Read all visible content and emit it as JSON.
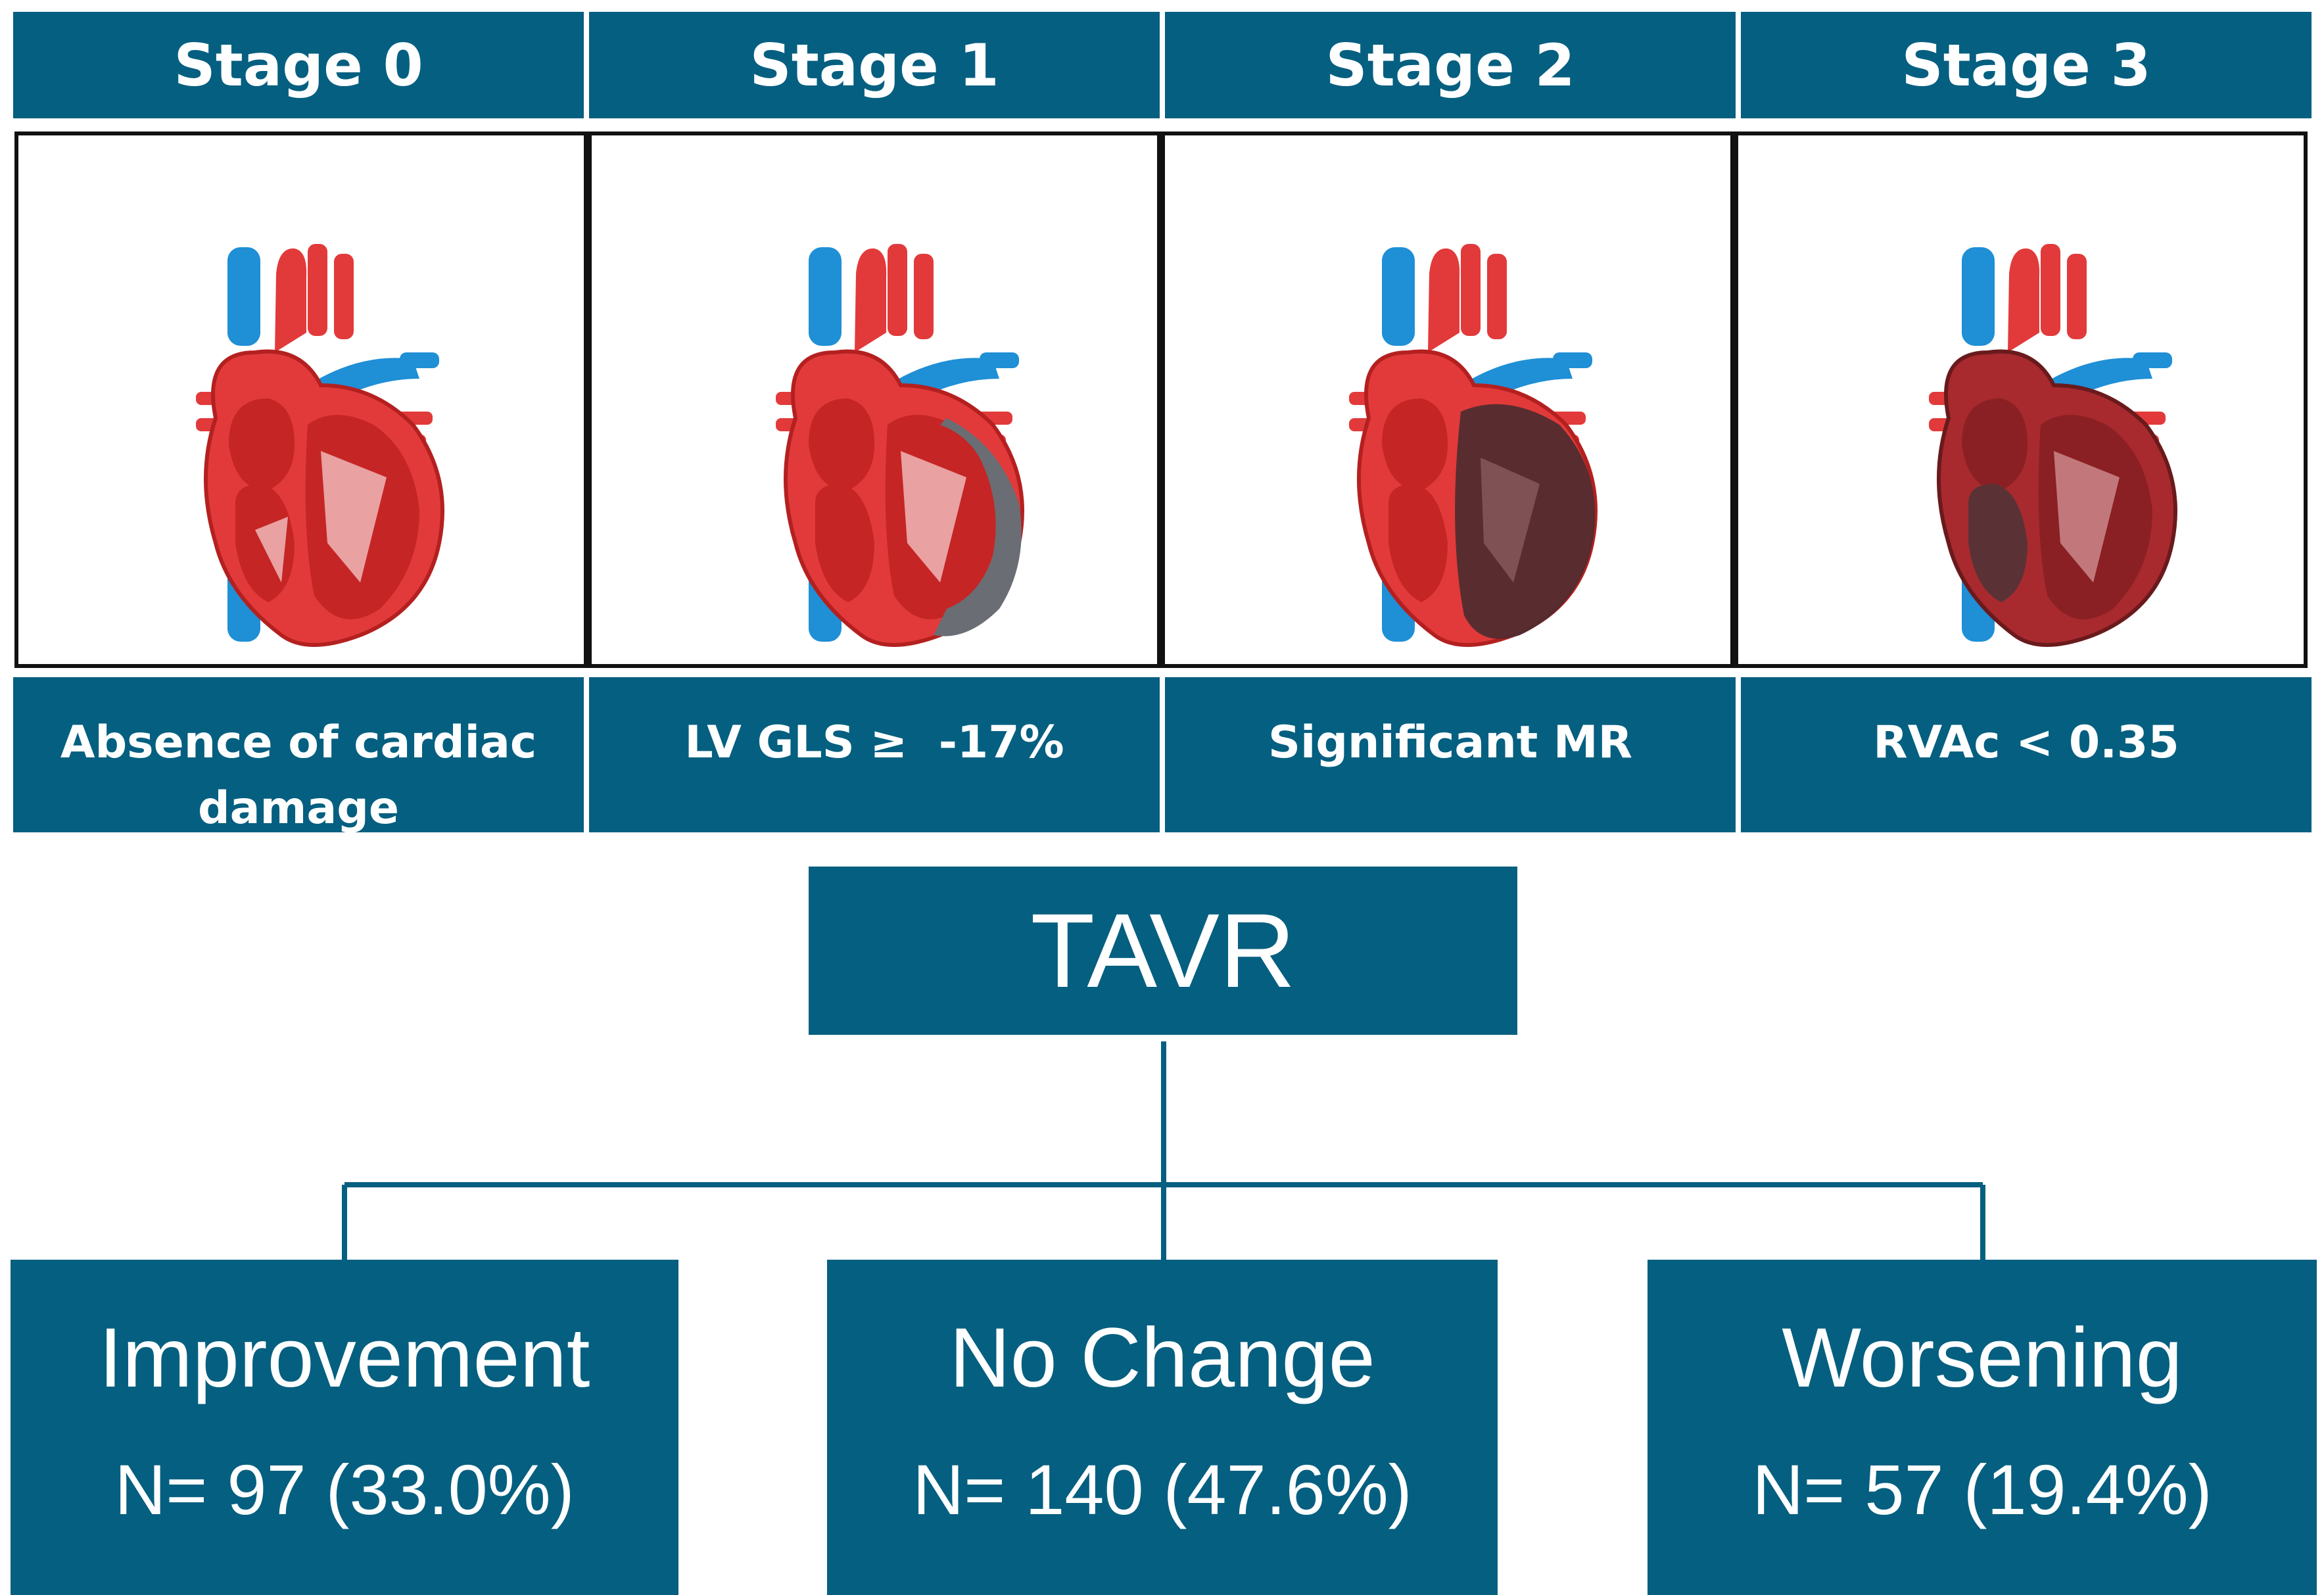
{
  "stages": [
    {
      "title": "Stage 0",
      "description": "Absence of cardiac damage",
      "affected_region": "none"
    },
    {
      "title": "Stage 1",
      "description": "LV GLS ≥  -17%",
      "affected_region": "left-ventricle-wall"
    },
    {
      "title": "Stage 2",
      "description": "Significant MR",
      "affected_region": "left-heart"
    },
    {
      "title": "Stage 3",
      "description": "RVAc < 0.35",
      "affected_region": "whole-heart"
    }
  ],
  "procedure": {
    "label": "TAVR"
  },
  "outcomes": [
    {
      "title": "Improvement",
      "count": "N= 97 (33.0%)"
    },
    {
      "title": "No Change",
      "count": "N= 140 (47.6%)"
    },
    {
      "title": "Worsening",
      "count": "N= 57 (19.4%)"
    }
  ],
  "colors": {
    "teal": "#055f80",
    "heart_red": "#e23a3a",
    "vessel_blue": "#1f8fd6",
    "damage_gray": "#6a6d73"
  }
}
